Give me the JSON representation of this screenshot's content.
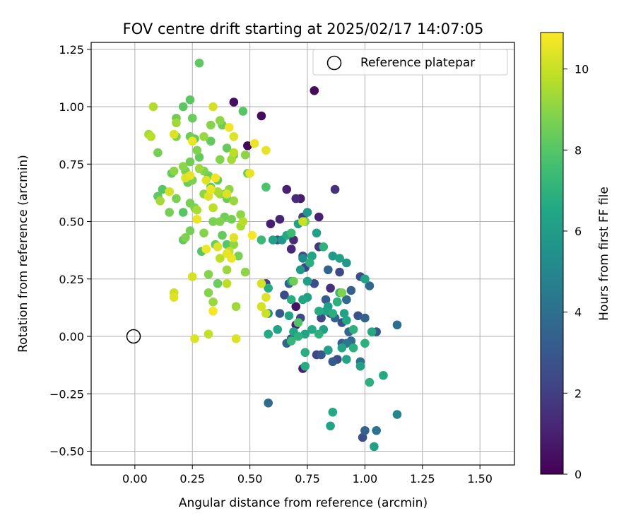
{
  "chart_data": {
    "type": "scatter",
    "title": "FOV centre drift starting at 2025/02/17 14:07:05",
    "xlabel": "Angular distance from reference (arcmin)",
    "ylabel": "Rotation from reference (arcmin)",
    "xlim": [
      -0.19,
      1.65
    ],
    "ylim": [
      -0.56,
      1.28
    ],
    "xticks": [
      0.0,
      0.25,
      0.5,
      0.75,
      1.0,
      1.25,
      1.5
    ],
    "xtick_labels": [
      "0.00",
      "0.25",
      "0.50",
      "0.75",
      "1.00",
      "1.25",
      "1.50"
    ],
    "yticks": [
      -0.5,
      -0.25,
      0.0,
      0.25,
      0.5,
      0.75,
      1.0,
      1.25
    ],
    "ytick_labels": [
      "−0.50",
      "−0.25",
      "0.00",
      "0.25",
      "0.50",
      "0.75",
      "1.00",
      "1.25"
    ],
    "grid": true,
    "legend": {
      "position": "top-right",
      "entries": [
        "Reference platepar"
      ]
    },
    "reference_point": [
      0.0,
      0.0
    ],
    "colorbar": {
      "label": "Hours from first FF file",
      "range": [
        0,
        10.9
      ],
      "ticks": [
        0,
        2,
        4,
        6,
        8,
        10
      ],
      "tick_labels": [
        "0",
        "2",
        "4",
        "6",
        "8",
        "10"
      ],
      "colormap": "viridis"
    },
    "points": [
      [
        0.78,
        1.07,
        0.3
      ],
      [
        0.43,
        1.02,
        0.4
      ],
      [
        0.55,
        0.96,
        0.3
      ],
      [
        0.49,
        0.83,
        0.2
      ],
      [
        0.87,
        0.64,
        1.5
      ],
      [
        0.66,
        0.64,
        1.0
      ],
      [
        0.7,
        0.6,
        1.3
      ],
      [
        0.72,
        0.6,
        0.8
      ],
      [
        0.63,
        0.51,
        1.1
      ],
      [
        0.73,
        0.52,
        2.0
      ],
      [
        0.8,
        0.52,
        1.0
      ],
      [
        0.59,
        0.49,
        0.9
      ],
      [
        0.69,
        0.42,
        1.4
      ],
      [
        0.68,
        0.38,
        1.2
      ],
      [
        0.62,
        0.42,
        3.0
      ],
      [
        0.73,
        0.35,
        2.5
      ],
      [
        0.8,
        0.39,
        1.8
      ],
      [
        0.74,
        0.3,
        2.0
      ],
      [
        0.84,
        0.29,
        3.5
      ],
      [
        0.89,
        0.28,
        2.4
      ],
      [
        0.57,
        0.23,
        2.0
      ],
      [
        0.67,
        0.23,
        3.2
      ],
      [
        0.7,
        0.13,
        0.5
      ],
      [
        0.65,
        0.18,
        2.5
      ],
      [
        0.78,
        0.23,
        2.6
      ],
      [
        0.83,
        0.16,
        3.1
      ],
      [
        0.85,
        0.21,
        1.5
      ],
      [
        0.88,
        0.15,
        2.4
      ],
      [
        0.92,
        0.16,
        3.8
      ],
      [
        0.94,
        0.2,
        3.3
      ],
      [
        0.98,
        0.26,
        2.6
      ],
      [
        1.02,
        0.22,
        3.7
      ],
      [
        0.63,
        0.1,
        3.0
      ],
      [
        0.72,
        0.08,
        2.4
      ],
      [
        0.7,
        0.05,
        1.0
      ],
      [
        0.81,
        0.08,
        2.3
      ],
      [
        0.85,
        0.1,
        2.3
      ],
      [
        0.87,
        0.08,
        3.5
      ],
      [
        0.9,
        0.06,
        2.6
      ],
      [
        0.93,
        0.02,
        3.5
      ],
      [
        0.97,
        0.09,
        2.9
      ],
      [
        1.0,
        0.08,
        3.4
      ],
      [
        1.05,
        0.02,
        3.0
      ],
      [
        1.14,
        0.05,
        3.9
      ],
      [
        0.66,
        -0.03,
        3.6
      ],
      [
        0.68,
        -0.01,
        2.8
      ],
      [
        0.73,
        -0.14,
        0.9
      ],
      [
        0.79,
        -0.08,
        2.3
      ],
      [
        0.81,
        -0.08,
        2.9
      ],
      [
        0.84,
        -0.06,
        3.4
      ],
      [
        0.86,
        -0.11,
        3.0
      ],
      [
        0.88,
        -0.1,
        2.6
      ],
      [
        0.9,
        -0.03,
        3.2
      ],
      [
        0.92,
        -0.03,
        4.3
      ],
      [
        0.94,
        -0.02,
        3.9
      ],
      [
        0.98,
        -0.11,
        4.0
      ],
      [
        0.58,
        -0.29,
        3.8
      ],
      [
        0.99,
        -0.44,
        2.6
      ],
      [
        1.0,
        -0.41,
        3.5
      ],
      [
        1.05,
        -0.41,
        4.2
      ],
      [
        1.14,
        -0.34,
        5.0
      ],
      [
        0.75,
        0.54,
        5.8
      ],
      [
        0.71,
        0.49,
        6.2
      ],
      [
        0.66,
        0.44,
        6.6
      ],
      [
        0.64,
        0.42,
        5.7
      ],
      [
        0.6,
        0.42,
        6.2
      ],
      [
        0.77,
        0.35,
        6.4
      ],
      [
        0.76,
        0.32,
        6.8
      ],
      [
        0.79,
        0.45,
        6.2
      ],
      [
        0.82,
        0.39,
        7.0
      ],
      [
        0.86,
        0.35,
        5.8
      ],
      [
        0.89,
        0.34,
        6.2
      ],
      [
        0.92,
        0.32,
        5.8
      ],
      [
        0.75,
        0.24,
        6.0
      ],
      [
        0.73,
        0.34,
        5.2
      ],
      [
        0.72,
        0.29,
        5.8
      ],
      [
        0.68,
        0.24,
        6.4
      ],
      [
        0.58,
        0.21,
        6.7
      ],
      [
        0.58,
        0.1,
        5.2
      ],
      [
        0.58,
        0.01,
        6.6
      ],
      [
        0.62,
        0.03,
        6.3
      ],
      [
        0.67,
        0.09,
        6.3
      ],
      [
        0.68,
        0.16,
        6.8
      ],
      [
        0.75,
        0.17,
        6.1
      ],
      [
        0.73,
        0.16,
        6.4
      ],
      [
        0.8,
        0.11,
        6.7
      ],
      [
        0.83,
        0.11,
        6.3
      ],
      [
        0.84,
        0.13,
        6.0
      ],
      [
        0.86,
        0.1,
        6.8
      ],
      [
        0.88,
        0.15,
        6.9
      ],
      [
        0.89,
        0.19,
        7.2
      ],
      [
        0.91,
        0.1,
        6.2
      ],
      [
        0.92,
        0.07,
        6.5
      ],
      [
        0.95,
        0.03,
        6.9
      ],
      [
        1.0,
        0.25,
        6.3
      ],
      [
        1.03,
        0.02,
        6.6
      ],
      [
        0.69,
        0.02,
        6.4
      ],
      [
        0.71,
        0.0,
        6.9
      ],
      [
        0.74,
        0.01,
        6.3
      ],
      [
        0.77,
        0.03,
        6.6
      ],
      [
        0.8,
        0.01,
        6.9
      ],
      [
        0.82,
        0.03,
        6.1
      ],
      [
        0.84,
        -0.06,
        6.1
      ],
      [
        0.68,
        -0.02,
        7.2
      ],
      [
        0.74,
        -0.07,
        6.8
      ],
      [
        0.74,
        -0.13,
        6.7
      ],
      [
        0.9,
        -0.05,
        6.4
      ],
      [
        0.92,
        -0.1,
        6.4
      ],
      [
        0.95,
        -0.05,
        6.9
      ],
      [
        0.98,
        -0.13,
        6.2
      ],
      [
        1.0,
        -0.03,
        6.9
      ],
      [
        1.02,
        -0.2,
        6.9
      ],
      [
        1.08,
        -0.17,
        6.6
      ],
      [
        0.86,
        -0.33,
        6.6
      ],
      [
        0.85,
        -0.39,
        6.3
      ],
      [
        1.04,
        -0.48,
        6.1
      ],
      [
        0.55,
        0.42,
        7.3
      ],
      [
        0.57,
        0.65,
        7.8
      ],
      [
        0.68,
        0.45,
        7.4
      ],
      [
        0.74,
        0.5,
        8.5
      ],
      [
        0.69,
        0.24,
        8.5
      ],
      [
        0.71,
        0.06,
        7.9
      ],
      [
        0.9,
        0.19,
        8.8
      ],
      [
        0.28,
        1.19,
        8.2
      ],
      [
        0.24,
        1.03,
        8.1
      ],
      [
        0.21,
        1.0,
        8.1
      ],
      [
        0.47,
        0.98,
        8.0
      ],
      [
        0.25,
        0.95,
        8.4
      ],
      [
        0.18,
        0.95,
        8.5
      ],
      [
        0.18,
        0.93,
        9.3
      ],
      [
        0.18,
        0.87,
        8.8
      ],
      [
        0.33,
        0.92,
        8.9
      ],
      [
        0.37,
        0.94,
        9.0
      ],
      [
        0.38,
        0.92,
        8.5
      ],
      [
        0.3,
        0.87,
        9.2
      ],
      [
        0.24,
        0.87,
        8.5
      ],
      [
        0.26,
        0.86,
        8.3
      ],
      [
        0.27,
        0.81,
        8.8
      ],
      [
        0.28,
        0.78,
        8.3
      ],
      [
        0.33,
        0.85,
        8.3
      ],
      [
        0.4,
        0.82,
        8.3
      ],
      [
        0.43,
        0.79,
        8.5
      ],
      [
        0.37,
        0.77,
        8.9
      ],
      [
        0.42,
        0.77,
        9.4
      ],
      [
        0.1,
        0.8,
        8.6
      ],
      [
        0.07,
        0.87,
        9.7
      ],
      [
        0.06,
        0.88,
        9.4
      ],
      [
        0.08,
        1.0,
        9.6
      ],
      [
        0.21,
        0.74,
        9.0
      ],
      [
        0.24,
        0.76,
        8.5
      ],
      [
        0.28,
        0.73,
        9.3
      ],
      [
        0.3,
        0.72,
        8.8
      ],
      [
        0.32,
        0.7,
        8.5
      ],
      [
        0.22,
        0.72,
        8.7
      ],
      [
        0.16,
        0.71,
        8.3
      ],
      [
        0.17,
        0.72,
        9.0
      ],
      [
        0.1,
        0.61,
        8.2
      ],
      [
        0.12,
        0.64,
        8.0
      ],
      [
        0.11,
        0.59,
        9.4
      ],
      [
        0.18,
        0.6,
        8.7
      ],
      [
        0.23,
        0.67,
        8.4
      ],
      [
        0.24,
        0.58,
        8.6
      ],
      [
        0.25,
        0.68,
        8.7
      ],
      [
        0.27,
        0.55,
        9.5
      ],
      [
        0.3,
        0.62,
        9.0
      ],
      [
        0.33,
        0.65,
        8.4
      ],
      [
        0.36,
        0.68,
        8.3
      ],
      [
        0.37,
        0.62,
        9.3
      ],
      [
        0.39,
        0.62,
        8.7
      ],
      [
        0.4,
        0.6,
        8.4
      ],
      [
        0.41,
        0.64,
        9.1
      ],
      [
        0.43,
        0.59,
        9.2
      ],
      [
        0.46,
        0.53,
        9.0
      ],
      [
        0.47,
        0.5,
        9.7
      ],
      [
        0.46,
        0.48,
        9.4
      ],
      [
        0.15,
        0.54,
        8.6
      ],
      [
        0.21,
        0.54,
        8.0
      ],
      [
        0.26,
        0.56,
        8.7
      ],
      [
        0.3,
        0.45,
        8.9
      ],
      [
        0.34,
        0.5,
        8.7
      ],
      [
        0.37,
        0.5,
        8.8
      ],
      [
        0.39,
        0.52,
        8.5
      ],
      [
        0.42,
        0.51,
        8.6
      ],
      [
        0.22,
        0.43,
        8.8
      ],
      [
        0.24,
        0.46,
        8.6
      ],
      [
        0.21,
        0.42,
        8.2
      ],
      [
        0.29,
        0.37,
        8.0
      ],
      [
        0.35,
        0.4,
        8.4
      ],
      [
        0.38,
        0.44,
        8.3
      ],
      [
        0.4,
        0.4,
        8.0
      ],
      [
        0.43,
        0.4,
        9.1
      ],
      [
        0.45,
        0.35,
        8.7
      ],
      [
        0.48,
        0.28,
        9.0
      ],
      [
        0.32,
        0.27,
        8.9
      ],
      [
        0.36,
        0.23,
        8.4
      ],
      [
        0.4,
        0.29,
        9.3
      ],
      [
        0.4,
        0.23,
        9.8
      ],
      [
        0.32,
        0.19,
        8.9
      ],
      [
        0.34,
        0.15,
        9.2
      ],
      [
        0.44,
        0.13,
        9.3
      ],
      [
        0.49,
        0.71,
        8.5
      ],
      [
        0.48,
        0.79,
        9.0
      ],
      [
        0.43,
        0.8,
        9.8
      ],
      [
        0.36,
        0.63,
        9.5
      ],
      [
        0.52,
        0.84,
        10.6
      ],
      [
        0.57,
        0.81,
        10.5
      ],
      [
        0.5,
        0.71,
        10.5
      ],
      [
        0.43,
        0.87,
        10.3
      ],
      [
        0.41,
        0.91,
        10.7
      ],
      [
        0.34,
        1.0,
        10.2
      ],
      [
        0.25,
        0.85,
        10.6
      ],
      [
        0.17,
        0.88,
        10.3
      ],
      [
        0.24,
        0.7,
        10.5
      ],
      [
        0.22,
        0.69,
        10.3
      ],
      [
        0.33,
        0.64,
        10.6
      ],
      [
        0.35,
        0.69,
        10.7
      ],
      [
        0.31,
        0.68,
        10.4
      ],
      [
        0.32,
        0.61,
        10.4
      ],
      [
        0.4,
        0.62,
        10.3
      ],
      [
        0.15,
        0.63,
        10.2
      ],
      [
        0.27,
        0.51,
        10.6
      ],
      [
        0.31,
        0.38,
        10.7
      ],
      [
        0.36,
        0.39,
        10.4
      ],
      [
        0.4,
        0.36,
        10.5
      ],
      [
        0.43,
        0.43,
        10.4
      ],
      [
        0.51,
        0.44,
        10.8
      ],
      [
        0.37,
        0.34,
        9.8
      ],
      [
        0.41,
        0.37,
        10.0
      ],
      [
        0.42,
        0.34,
        10.6
      ],
      [
        0.34,
        0.56,
        9.8
      ],
      [
        0.25,
        0.26,
        10.2
      ],
      [
        0.17,
        0.19,
        10.0
      ],
      [
        0.17,
        0.17,
        10.4
      ],
      [
        0.34,
        0.11,
        10.8
      ],
      [
        0.55,
        0.23,
        10.2
      ],
      [
        0.57,
        0.17,
        10.4
      ],
      [
        0.57,
        0.1,
        10.0
      ],
      [
        0.55,
        0.13,
        10.2
      ],
      [
        0.26,
        -0.01,
        10.3
      ],
      [
        0.32,
        0.01,
        9.9
      ],
      [
        0.44,
        -0.01,
        10.3
      ],
      [
        0.73,
        0.5,
        10.0
      ]
    ]
  }
}
